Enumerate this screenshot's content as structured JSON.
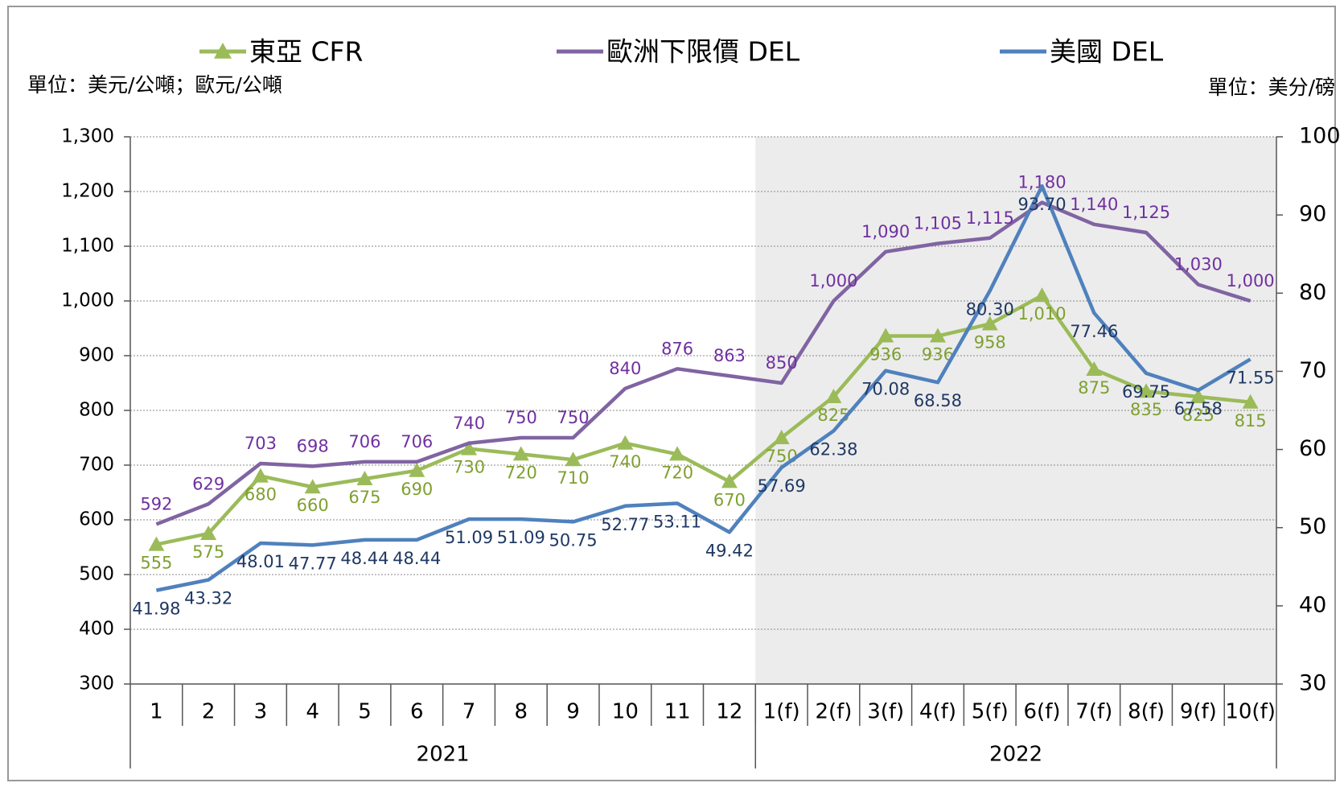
{
  "chart_data": {
    "type": "line",
    "legend_position": "top",
    "y_unit_label": "單位：美元/公噸；歐元/公噸",
    "y2_unit_label": "單位：美分/磅",
    "categories": [
      "1",
      "2",
      "3",
      "4",
      "5",
      "6",
      "7",
      "8",
      "9",
      "10",
      "11",
      "12",
      "1(f)",
      "2(f)",
      "3(f)",
      "4(f)",
      "5(f)",
      "6(f)",
      "7(f)",
      "8(f)",
      "9(f)",
      "10(f)"
    ],
    "groups": [
      {
        "label": "2021",
        "span": 12
      },
      {
        "label": "2022",
        "span": 10
      }
    ],
    "series": [
      {
        "name": "東亞 CFR",
        "color": "#9bbb59",
        "label_color": "#7fa030",
        "marker": "triangle",
        "values": [
          555,
          575,
          680,
          660,
          675,
          690,
          730,
          720,
          710,
          740,
          720,
          670,
          750,
          825,
          936,
          936,
          958,
          1010,
          875,
          835,
          825,
          815
        ],
        "value_labels": [
          "555",
          "575",
          "680",
          "660",
          "675",
          "690",
          "730",
          "720",
          "710",
          "740",
          "720",
          "670",
          "750",
          "825",
          "936",
          "936",
          "958",
          "1,010",
          "875",
          "835",
          "825",
          "815"
        ]
      },
      {
        "name": "歐洲下限價 DEL",
        "color": "#8064a2",
        "label_color": "#7030a0",
        "values": [
          592,
          629,
          703,
          698,
          706,
          706,
          740,
          750,
          750,
          840,
          876,
          863,
          850,
          1000,
          1090,
          1105,
          1115,
          1180,
          1140,
          1125,
          1030,
          1000
        ],
        "value_labels": [
          "592",
          "629",
          "703",
          "698",
          "706",
          "706",
          "740",
          "750",
          "750",
          "840",
          "876",
          "863",
          "850",
          "1,000",
          "1,090",
          "1,105",
          "1,115",
          "1,180",
          "1,140",
          "1,125",
          "1,030",
          "1,000"
        ]
      },
      {
        "name": "美國 DEL",
        "color": "#4f81bd",
        "label_color": "#1f3864",
        "axis": "y2",
        "values": [
          41.98,
          43.32,
          48.01,
          47.77,
          48.44,
          48.44,
          51.09,
          51.09,
          50.75,
          52.77,
          53.11,
          49.42,
          57.69,
          62.38,
          70.08,
          68.58,
          80.3,
          93.7,
          77.46,
          69.75,
          67.58,
          71.55
        ],
        "value_labels": [
          "41.98",
          "43.32",
          "48.01",
          "47.77",
          "48.44",
          "48.44",
          "51.09",
          "51.09",
          "50.75",
          "52.77",
          "53.11",
          "49.42",
          "57.69",
          "62.38",
          "70.08",
          "68.58",
          "80.30",
          "93.70",
          "77.46",
          "69.75",
          "67.58",
          "71.55"
        ]
      }
    ],
    "ylim": [
      300,
      1300
    ],
    "yticks": [
      {
        "value": 300,
        "label": "300"
      },
      {
        "value": 400,
        "label": "400"
      },
      {
        "value": 500,
        "label": "500"
      },
      {
        "value": 600,
        "label": "600"
      },
      {
        "value": 700,
        "label": "700"
      },
      {
        "value": 800,
        "label": "800"
      },
      {
        "value": 900,
        "label": "900"
      },
      {
        "value": 1000,
        "label": "1,000"
      },
      {
        "value": 1100,
        "label": "1,100"
      },
      {
        "value": 1200,
        "label": "1,200"
      },
      {
        "value": 1300,
        "label": "1,300"
      }
    ],
    "y2lim": [
      30,
      100
    ],
    "y2ticks": [
      30,
      40,
      50,
      60,
      70,
      80,
      90,
      100
    ],
    "grid": true,
    "forecast_shade": "#ececec"
  }
}
